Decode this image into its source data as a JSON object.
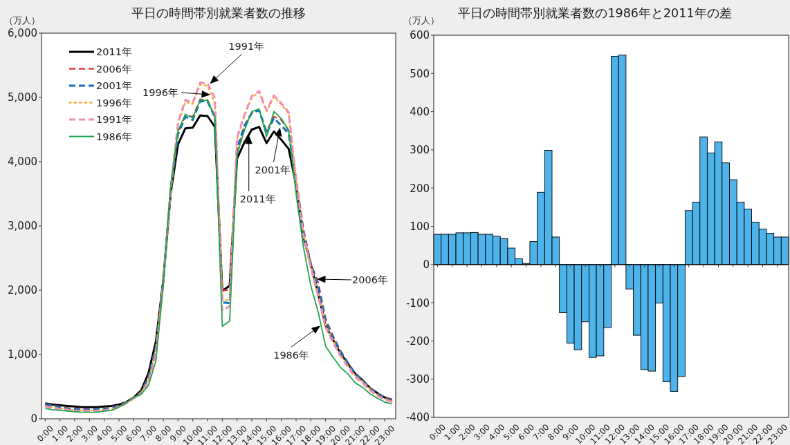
{
  "chart_data": [
    {
      "type": "line",
      "title": "平日の時間帯別就業者数の推移",
      "ylabel": "（万人）",
      "x": [
        0,
        0.5,
        1,
        1.5,
        2,
        2.5,
        3,
        3.5,
        4,
        4.5,
        5,
        5.5,
        6,
        6.5,
        7,
        7.5,
        8,
        8.5,
        9,
        9.5,
        10,
        10.5,
        11,
        11.5,
        12,
        12.5,
        13,
        13.5,
        14,
        14.5,
        15,
        15.5,
        16,
        16.5,
        17,
        17.5,
        18,
        18.5,
        19,
        19.5,
        20,
        20.5,
        21,
        21.5,
        22,
        22.5,
        23,
        23.5
      ],
      "xlim": [
        -0.25,
        23.75
      ],
      "xticks": [
        {
          "value": 0,
          "label": "0:00"
        },
        {
          "value": 1,
          "label": "1:00"
        },
        {
          "value": 2,
          "label": "2:00"
        },
        {
          "value": 3,
          "label": "3:00"
        },
        {
          "value": 4,
          "label": "4:00"
        },
        {
          "value": 5,
          "label": "5:00"
        },
        {
          "value": 6,
          "label": "6:00"
        },
        {
          "value": 7,
          "label": "7:00"
        },
        {
          "value": 8,
          "label": "8:00"
        },
        {
          "value": 9,
          "label": "9:00"
        },
        {
          "value": 10,
          "label": "10:00"
        },
        {
          "value": 11,
          "label": "11:00"
        },
        {
          "value": 12,
          "label": "12:00"
        },
        {
          "value": 13,
          "label": "13:00"
        },
        {
          "value": 14,
          "label": "14:00"
        },
        {
          "value": 15,
          "label": "15:00"
        },
        {
          "value": 16,
          "label": "16:00"
        },
        {
          "value": 17,
          "label": "17:00"
        },
        {
          "value": 18,
          "label": "18:00"
        },
        {
          "value": 19,
          "label": "19:00"
        },
        {
          "value": 20,
          "label": "20:00"
        },
        {
          "value": 21,
          "label": "21:00"
        },
        {
          "value": 22,
          "label": "22:00"
        },
        {
          "value": 23,
          "label": "23:00"
        }
      ],
      "ylim": [
        0,
        6000
      ],
      "yticks": [
        0,
        {
          "value": 1000,
          "label": "1,000"
        },
        {
          "value": 2000,
          "label": "2,000"
        },
        {
          "value": 3000,
          "label": "3,000"
        },
        {
          "value": 4000,
          "label": "4,000"
        },
        {
          "value": 5000,
          "label": "5,000"
        },
        {
          "value": 6000,
          "label": "6,000"
        }
      ],
      "legend": "top left",
      "series": [
        {
          "name": "2011年",
          "color": "#000000",
          "line_style": "solid",
          "values": [
            240,
            220,
            210,
            200,
            190,
            180,
            180,
            180,
            190,
            200,
            220,
            260,
            330,
            440,
            710,
            1200,
            2150,
            3500,
            4270,
            4520,
            4530,
            4720,
            4710,
            4540,
            1990,
            2070,
            4050,
            4300,
            4500,
            4540,
            4290,
            4470,
            4340,
            4200,
            3640,
            2830,
            2400,
            1950,
            1450,
            1230,
            1020,
            860,
            700,
            600,
            480,
            400,
            330,
            300
          ]
        },
        {
          "name": "2006年",
          "color": "#e83a3a",
          "line_style": "dashed",
          "values": [
            230,
            210,
            190,
            170,
            160,
            150,
            150,
            160,
            160,
            180,
            210,
            260,
            330,
            420,
            660,
            1130,
            2150,
            3550,
            4450,
            4720,
            4700,
            4970,
            4960,
            4700,
            1990,
            2010,
            4150,
            4550,
            4760,
            4800,
            4470,
            4700,
            4650,
            4480,
            3750,
            2950,
            2420,
            2120,
            1560,
            1290,
            1060,
            880,
            710,
            610,
            480,
            400,
            330,
            300
          ]
        },
        {
          "name": "2001年",
          "color": "#0c6fbf",
          "line_style": "dashed",
          "values": [
            220,
            200,
            180,
            160,
            150,
            140,
            140,
            150,
            150,
            170,
            200,
            250,
            320,
            410,
            640,
            1100,
            2130,
            3550,
            4430,
            4700,
            4650,
            4940,
            4940,
            4690,
            1810,
            1800,
            4200,
            4560,
            4760,
            4800,
            4440,
            4680,
            4560,
            4440,
            3700,
            2900,
            2410,
            2050,
            1520,
            1270,
            1050,
            870,
            700,
            600,
            470,
            390,
            320,
            280
          ]
        },
        {
          "name": "1996年",
          "color": "#f5ad2e",
          "line_style": "dotted",
          "values": [
            200,
            180,
            160,
            150,
            130,
            130,
            130,
            130,
            140,
            150,
            190,
            240,
            320,
            400,
            600,
            1050,
            2120,
            3560,
            4580,
            4930,
            4900,
            5200,
            5180,
            4900,
            1840,
            1850,
            4350,
            4710,
            5000,
            5080,
            4780,
            5010,
            4890,
            4750,
            3720,
            2880,
            2380,
            1950,
            1460,
            1220,
            1000,
            830,
            670,
            580,
            460,
            370,
            310,
            270
          ]
        },
        {
          "name": "1991年",
          "color": "#f28cb8",
          "line_style": "dashed",
          "values": [
            190,
            170,
            150,
            140,
            120,
            120,
            120,
            120,
            130,
            140,
            180,
            240,
            320,
            390,
            580,
            1000,
            2100,
            3550,
            4610,
            4960,
            4920,
            5230,
            5220,
            4990,
            1680,
            1750,
            4380,
            4730,
            5020,
            5100,
            4800,
            5030,
            4910,
            4770,
            3700,
            2850,
            2350,
            1900,
            1420,
            1190,
            980,
            810,
            650,
            560,
            440,
            360,
            300,
            260
          ]
        },
        {
          "name": "1986年",
          "color": "#1ea64a",
          "line_style": "solid",
          "values": [
            160,
            140,
            130,
            120,
            110,
            100,
            100,
            100,
            120,
            130,
            180,
            250,
            330,
            380,
            520,
            900,
            2080,
            3630,
            4480,
            4740,
            4680,
            4960,
            4950,
            4700,
            1440,
            1520,
            4110,
            4490,
            4780,
            4820,
            4390,
            4780,
            4670,
            4490,
            3500,
            2670,
            2070,
            1660,
            1130,
            960,
            800,
            700,
            560,
            490,
            390,
            320,
            260,
            230
          ]
        }
      ],
      "annotations": [
        {
          "text": "1991年",
          "x": 11.2,
          "y": 5220
        },
        "1996年",
        {
          "text": "2001年",
          "x": 15.9,
          "y": 4520
        },
        {
          "text": "2011年",
          "x": 13.8,
          "y": 4400
        },
        "2006年",
        {
          "text": "1986年",
          "x": 18.6,
          "y": 1440
        }
      ]
    },
    {
      "type": "bar",
      "title": "平日の時間帯別就業者数の1986年と2011年の差",
      "ylabel": "（万人）",
      "x": [
        0,
        0.5,
        1,
        1.5,
        2,
        2.5,
        3,
        3.5,
        4,
        4.5,
        5,
        5.5,
        6,
        6.5,
        7,
        7.5,
        8,
        8.5,
        9,
        9.5,
        10,
        10.5,
        11,
        11.5,
        12,
        12.5,
        13,
        13.5,
        14,
        14.5,
        15,
        15.5,
        16,
        16.5,
        17,
        17.5,
        18,
        18.5,
        19,
        19.5,
        20,
        20.5,
        21,
        21.5,
        22,
        22.5,
        23,
        23.5
      ],
      "xlim": [
        -0.25,
        23.75
      ],
      "xticks": [
        {
          "value": 0,
          "label": "0:00"
        },
        {
          "value": 1,
          "label": "1:00"
        },
        {
          "value": 2,
          "label": "2:00"
        },
        {
          "value": 3,
          "label": "3:00"
        },
        {
          "value": 4,
          "label": "4:00"
        },
        {
          "value": 5,
          "label": "5:00"
        },
        {
          "value": 6,
          "label": "6:00"
        },
        {
          "value": 7,
          "label": "7:00"
        },
        {
          "value": 8,
          "label": "8:00"
        },
        {
          "value": 9,
          "label": "9:00"
        },
        {
          "value": 10,
          "label": "10:00"
        },
        {
          "value": 11,
          "label": "11:00"
        },
        {
          "value": 12,
          "label": "12:00"
        },
        {
          "value": 13,
          "label": "13:00"
        },
        {
          "value": 14,
          "label": "14:00"
        },
        {
          "value": 15,
          "label": "15:00"
        },
        {
          "value": 16,
          "label": "16:00"
        },
        {
          "value": 17,
          "label": "17:00"
        },
        {
          "value": 18,
          "label": "18:00"
        },
        {
          "value": 19,
          "label": "19:00"
        },
        {
          "value": 20,
          "label": "20:00"
        },
        {
          "value": 21,
          "label": "21:00"
        },
        {
          "value": 22,
          "label": "22:00"
        },
        {
          "value": 23,
          "label": "23:00"
        }
      ],
      "ylim": [
        -400,
        600
      ],
      "yticks": [
        -400,
        -300,
        -200,
        -100,
        0,
        100,
        200,
        300,
        400,
        500,
        600
      ],
      "color": "#4db3ea",
      "values": [
        79,
        79,
        79,
        83,
        83,
        84,
        79,
        79,
        74,
        68,
        43,
        15,
        3,
        60,
        189,
        299,
        72,
        -126,
        -206,
        -223,
        -150,
        -243,
        -239,
        -165,
        545,
        548,
        -64,
        -185,
        -275,
        -279,
        -101,
        -307,
        -332,
        -293,
        141,
        163,
        334,
        292,
        321,
        266,
        222,
        163,
        145,
        111,
        93,
        82,
        72,
        72
      ]
    }
  ]
}
